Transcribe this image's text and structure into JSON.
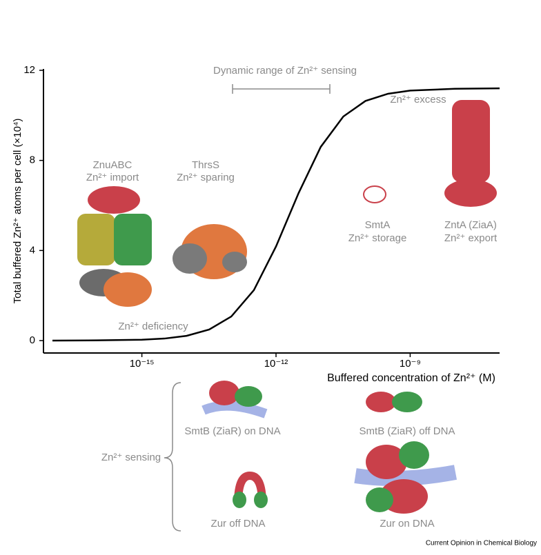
{
  "chart_data": {
    "type": "line",
    "ylabel": "Total buffered Zn²⁺ atoms per cell (×10⁴)",
    "xlabel": "Buffered concentration of Zn²⁺ (M)",
    "xscale": "log",
    "xlim": [
      6.3e-18,
      1e-07
    ],
    "xticks": [
      {
        "value": 1e-15,
        "label": "10⁻¹⁵"
      },
      {
        "value": 1e-12,
        "label": "10⁻¹²"
      },
      {
        "value": 1e-09,
        "label": "10⁻⁹"
      }
    ],
    "ylim": [
      0,
      12
    ],
    "yticks": [
      0,
      4,
      8,
      12
    ],
    "x": [
      1e-17,
      1e-16,
      1e-15,
      3.2e-15,
      1e-14,
      3.2e-14,
      1e-13,
      3.2e-13,
      1e-12,
      3.2e-12,
      1e-11,
      3.2e-11,
      1e-10,
      3.2e-10,
      1e-09,
      1e-08,
      1e-07
    ],
    "series": [
      {
        "color": "#000000",
        "values": [
          0.0,
          0.01,
          0.04,
          0.09,
          0.21,
          0.49,
          1.07,
          2.24,
          4.18,
          6.55,
          8.6,
          9.95,
          10.64,
          10.96,
          11.1,
          11.18,
          11.2
        ]
      }
    ],
    "annotations": [
      "Dynamic range of Zn²⁺ sensing",
      "Zn²⁺ excess",
      "ZnuABC",
      "Zn²⁺ import",
      "ThrsS",
      "Zn²⁺ sparing",
      "SmtA",
      "Zn²⁺ storage",
      "ZntA (ZiaA)",
      "Zn²⁺ export",
      "Zn²⁺ deficiency",
      "SmtB (ZiaR) on DNA",
      "SmtB (ZiaR) off DNA",
      "Zn²⁺ sensing",
      "Zur off DNA",
      "Zur on DNA",
      "Current Opinion in Chemical Biology"
    ]
  }
}
